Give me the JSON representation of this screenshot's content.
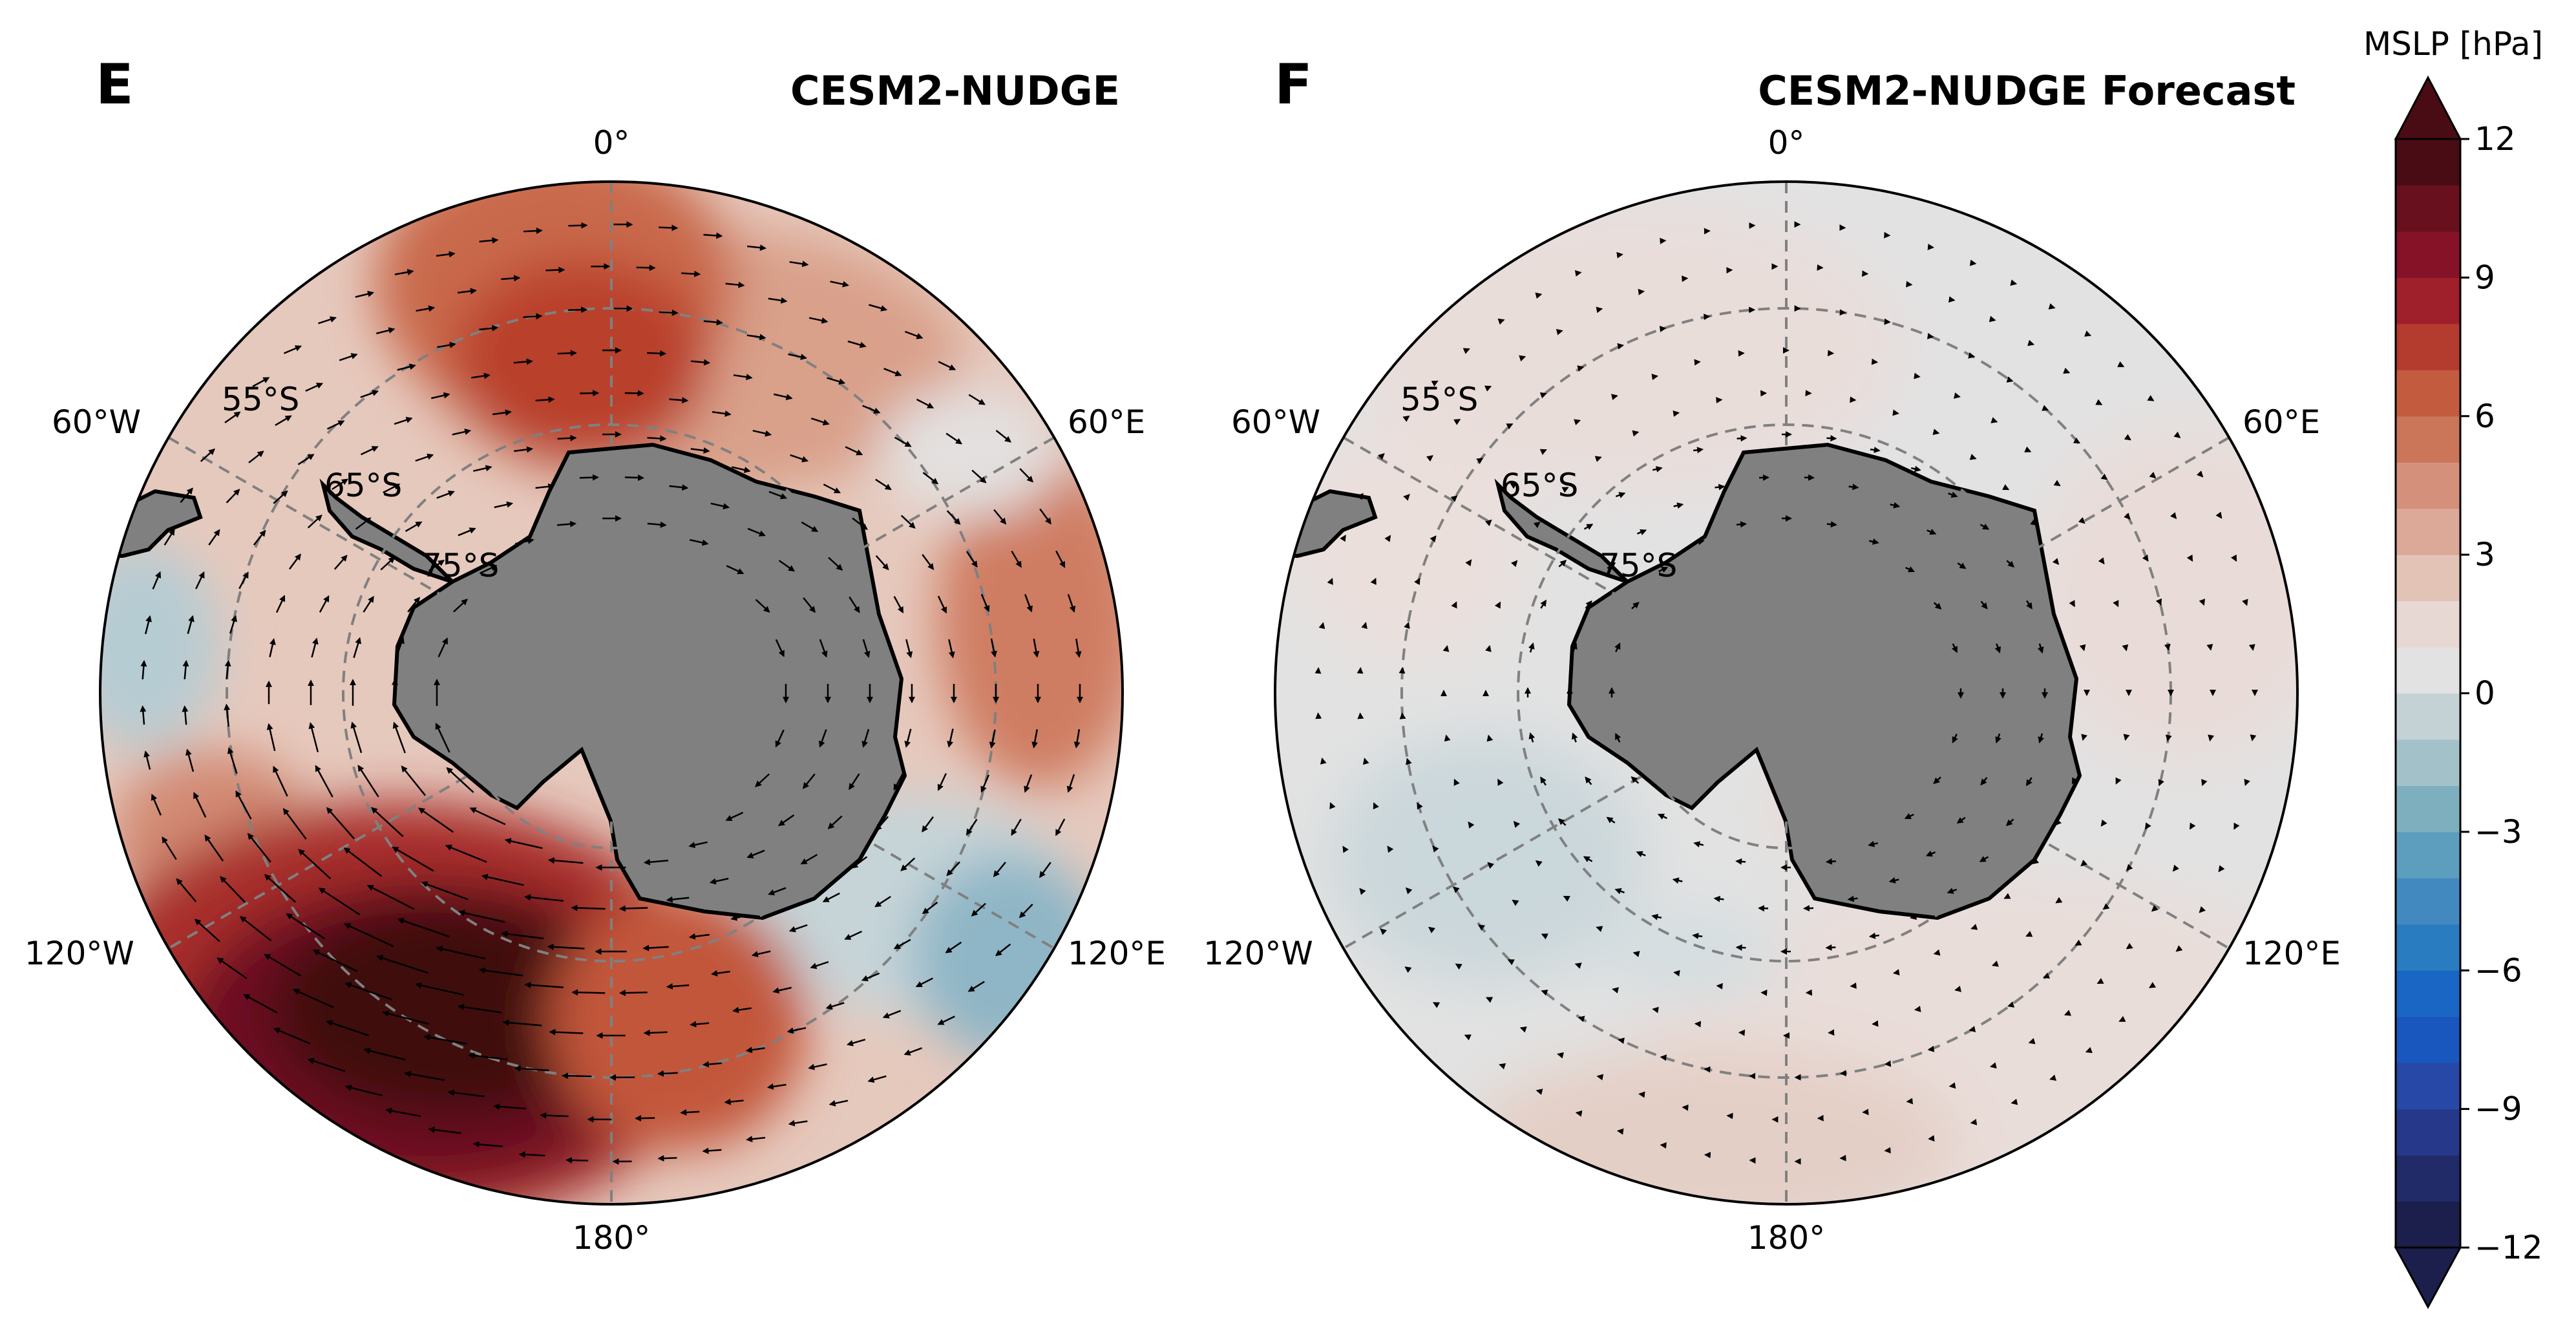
{
  "panels": [
    {
      "letter": "E",
      "title": "CESM2-NUDGE",
      "lon_labels": {
        "top": "0°",
        "left": "60°W",
        "right": "60°E",
        "lower_left": "120°W",
        "lower_right": "120°E",
        "bottom": "180°"
      },
      "lat_labels": [
        "55°S",
        "65°S",
        "75°S"
      ],
      "description_values": {
        "max_anomaly_hpa": 12,
        "min_anomaly_hpa": -6
      }
    },
    {
      "letter": "F",
      "title": "CESM2-NUDGE Forecast",
      "lon_labels": {
        "top": "0°",
        "left": "60°W",
        "right": "60°E",
        "lower_left": "120°W",
        "lower_right": "120°E",
        "bottom": "180°"
      },
      "lat_labels": [
        "55°S",
        "65°S",
        "75°S"
      ],
      "description_values": {
        "max_anomaly_hpa": 1,
        "min_anomaly_hpa": -1
      }
    }
  ],
  "colorbar": {
    "label": "MSLP [hPa]",
    "min": -12,
    "max": 12,
    "step": 1.5,
    "ticks": [
      "12",
      "9",
      "6",
      "3",
      "0",
      "−3",
      "−6",
      "−9",
      "−12"
    ],
    "extend": "both",
    "colors": [
      "#1c1f4b",
      "#212b68",
      "#25388a",
      "#2748a6",
      "#1956bd",
      "#1a66c4",
      "#2a7cc0",
      "#4289c0",
      "#5d9dbd",
      "#7eafbf",
      "#a2c1c9",
      "#c4d2d6",
      "#e2e2e2",
      "#e8d8d4",
      "#e4c3b7",
      "#dca897",
      "#d4907a",
      "#cb7559",
      "#c35b3e",
      "#b33c2f",
      "#9f1f2b",
      "#861227",
      "#69101f",
      "#4a0c14"
    ]
  },
  "colors": {
    "land": "#808080",
    "grid": "#808080",
    "neutral_ocean": "#e2e2e2"
  }
}
